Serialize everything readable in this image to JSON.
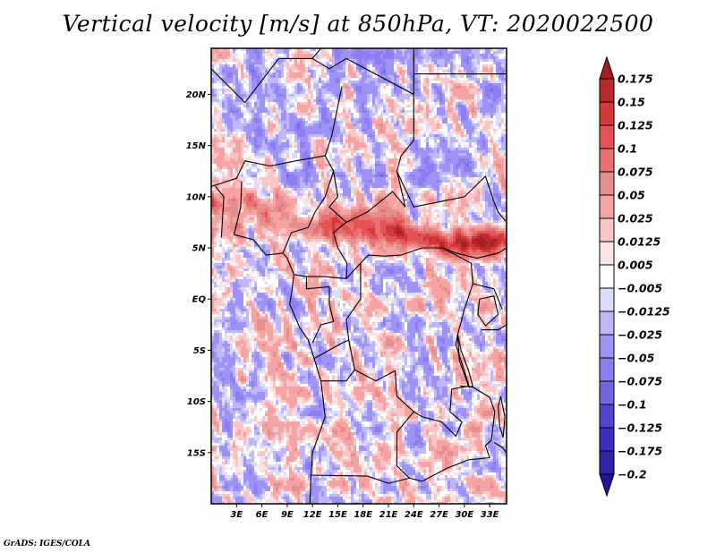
{
  "title": "Vertical velocity [m/s] at 850hPa, VT: 2020022500",
  "credit": "GrADS: IGES/COLA",
  "chart_data": {
    "type": "heatmap",
    "title": "Vertical velocity [m/s] at 850hPa, VT: 2020022500",
    "variable": "Vertical velocity",
    "units": "m/s",
    "level": "850hPa",
    "valid_time": "2020022500",
    "region": "Central Africa",
    "xlim": [
      0,
      35
    ],
    "ylim": [
      -20,
      24.5
    ],
    "x_ticks": [
      {
        "value": 3,
        "label": "3E"
      },
      {
        "value": 6,
        "label": "6E"
      },
      {
        "value": 9,
        "label": "9E"
      },
      {
        "value": 12,
        "label": "12E"
      },
      {
        "value": 15,
        "label": "15E"
      },
      {
        "value": 18,
        "label": "18E"
      },
      {
        "value": 21,
        "label": "21E"
      },
      {
        "value": 24,
        "label": "24E"
      },
      {
        "value": 27,
        "label": "27E"
      },
      {
        "value": 30,
        "label": "30E"
      },
      {
        "value": 33,
        "label": "33E"
      }
    ],
    "y_ticks": [
      {
        "value": 20,
        "label": "20N"
      },
      {
        "value": 15,
        "label": "15N"
      },
      {
        "value": 10,
        "label": "10N"
      },
      {
        "value": 5,
        "label": "5N"
      },
      {
        "value": 0,
        "label": "EQ"
      },
      {
        "value": -5,
        "label": "5S"
      },
      {
        "value": -10,
        "label": "10S"
      },
      {
        "value": -15,
        "label": "15S"
      }
    ],
    "colorbar": {
      "placement": "right",
      "levels": [
        0.175,
        0.15,
        0.125,
        0.1,
        0.075,
        0.05,
        0.025,
        0.0125,
        0.005,
        -0.005,
        -0.0125,
        -0.025,
        -0.05,
        -0.075,
        -0.1,
        -0.125,
        -0.175,
        -0.2
      ],
      "labels": [
        "0.175",
        "0.15",
        "0.125",
        "0.1",
        "0.075",
        "0.05",
        "0.025",
        "0.0125",
        "0.005",
        "−0.005",
        "−0.0125",
        "−0.025",
        "−0.05",
        "−0.075",
        "−0.1",
        "−0.125",
        "−0.175",
        "−0.2"
      ],
      "colors": [
        "#a51e22",
        "#b92a2c",
        "#d1393a",
        "#e45456",
        "#e87071",
        "#e68d8f",
        "#f5a3a3",
        "#fbc5c5",
        "#fde4e4",
        "#ffffff",
        "#dcdcfc",
        "#c0b7fa",
        "#9f92f6",
        "#8c7ef2",
        "#7467de",
        "#4f45cf",
        "#3b2fbf",
        "#2f25a8",
        "#24139b"
      ],
      "extend": "both"
    },
    "features": [
      "Strong upward motion band (red) along ~6-9N from 0E to 33E",
      "Mixed weak positive/negative noise elsewhere",
      "Country boundaries and coastlines drawn in black"
    ]
  }
}
